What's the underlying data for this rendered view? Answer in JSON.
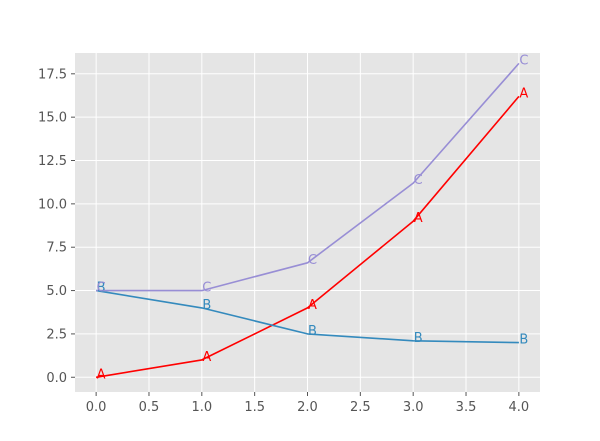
{
  "chart_data": {
    "type": "line",
    "title": "",
    "xlabel": "",
    "ylabel": "",
    "xlim": [
      -0.2,
      4.2
    ],
    "ylim": [
      -0.85,
      18.7
    ],
    "grid": true,
    "legend": "none",
    "background": "#E5E5E5",
    "xticks": [
      0.0,
      0.5,
      1.0,
      1.5,
      2.0,
      2.5,
      3.0,
      3.5,
      4.0
    ],
    "xtick_labels": [
      "0.0",
      "0.5",
      "1.0",
      "1.5",
      "2.0",
      "2.5",
      "3.0",
      "3.5",
      "4.0"
    ],
    "yticks": [
      0.0,
      2.5,
      5.0,
      7.5,
      10.0,
      12.5,
      15.0,
      17.5
    ],
    "ytick_labels": [
      "0.0",
      "2.5",
      "5.0",
      "7.5",
      "10.0",
      "12.5",
      "15.0",
      "17.5"
    ],
    "x": [
      0,
      1,
      2,
      3,
      4
    ],
    "series": [
      {
        "name": "A",
        "color": "#FF0000",
        "values": [
          0,
          1,
          4,
          9,
          16.2
        ]
      },
      {
        "name": "B",
        "color": "#348ABD",
        "values": [
          5,
          4,
          2.5,
          2.1,
          2.0
        ]
      },
      {
        "name": "C",
        "color": "#988ED5",
        "values": [
          5,
          5,
          6.6,
          11.2,
          18.1
        ]
      }
    ],
    "point_labels": [
      {
        "series": 0,
        "text": [
          "A",
          "A",
          "A",
          "A",
          "A"
        ]
      },
      {
        "series": 1,
        "text": [
          "B",
          "B",
          "B",
          "B",
          "B"
        ]
      },
      {
        "series": 2,
        "text": [
          "C",
          "C",
          "C",
          "C",
          "C"
        ]
      }
    ]
  }
}
